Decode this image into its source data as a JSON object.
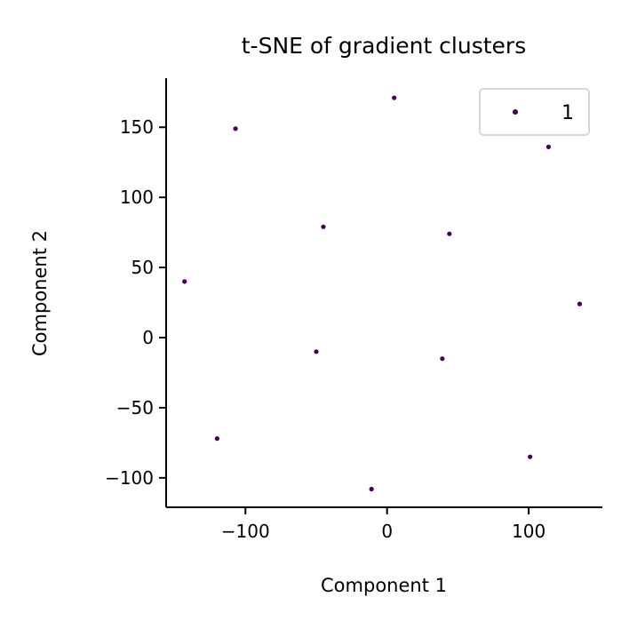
{
  "chart_data": {
    "type": "scatter",
    "title": "t-SNE of gradient clusters",
    "xlabel": "Component 1",
    "ylabel": "Component 2",
    "xlim": [
      -156,
      152
    ],
    "ylim": [
      -121,
      185
    ],
    "xticks": [
      -100,
      0,
      100
    ],
    "yticks": [
      -100,
      -50,
      0,
      50,
      100,
      150
    ],
    "xtick_labels": [
      "−100",
      "0",
      "100"
    ],
    "ytick_labels": [
      "−100",
      "−50",
      "0",
      "50",
      "100",
      "150"
    ],
    "grid": false,
    "legend": {
      "placement": "top-right",
      "entries": [
        "1"
      ]
    },
    "series": [
      {
        "name": "1",
        "color": "#440154",
        "points": [
          {
            "x": 5,
            "y": 171
          },
          {
            "x": -107,
            "y": 149
          },
          {
            "x": 114,
            "y": 136
          },
          {
            "x": -45,
            "y": 79
          },
          {
            "x": 44,
            "y": 74
          },
          {
            "x": -143,
            "y": 40
          },
          {
            "x": 136,
            "y": 24
          },
          {
            "x": -50,
            "y": -10
          },
          {
            "x": 39,
            "y": -15
          },
          {
            "x": -120,
            "y": -72
          },
          {
            "x": 101,
            "y": -85
          },
          {
            "x": -11,
            "y": -108
          }
        ]
      }
    ]
  }
}
